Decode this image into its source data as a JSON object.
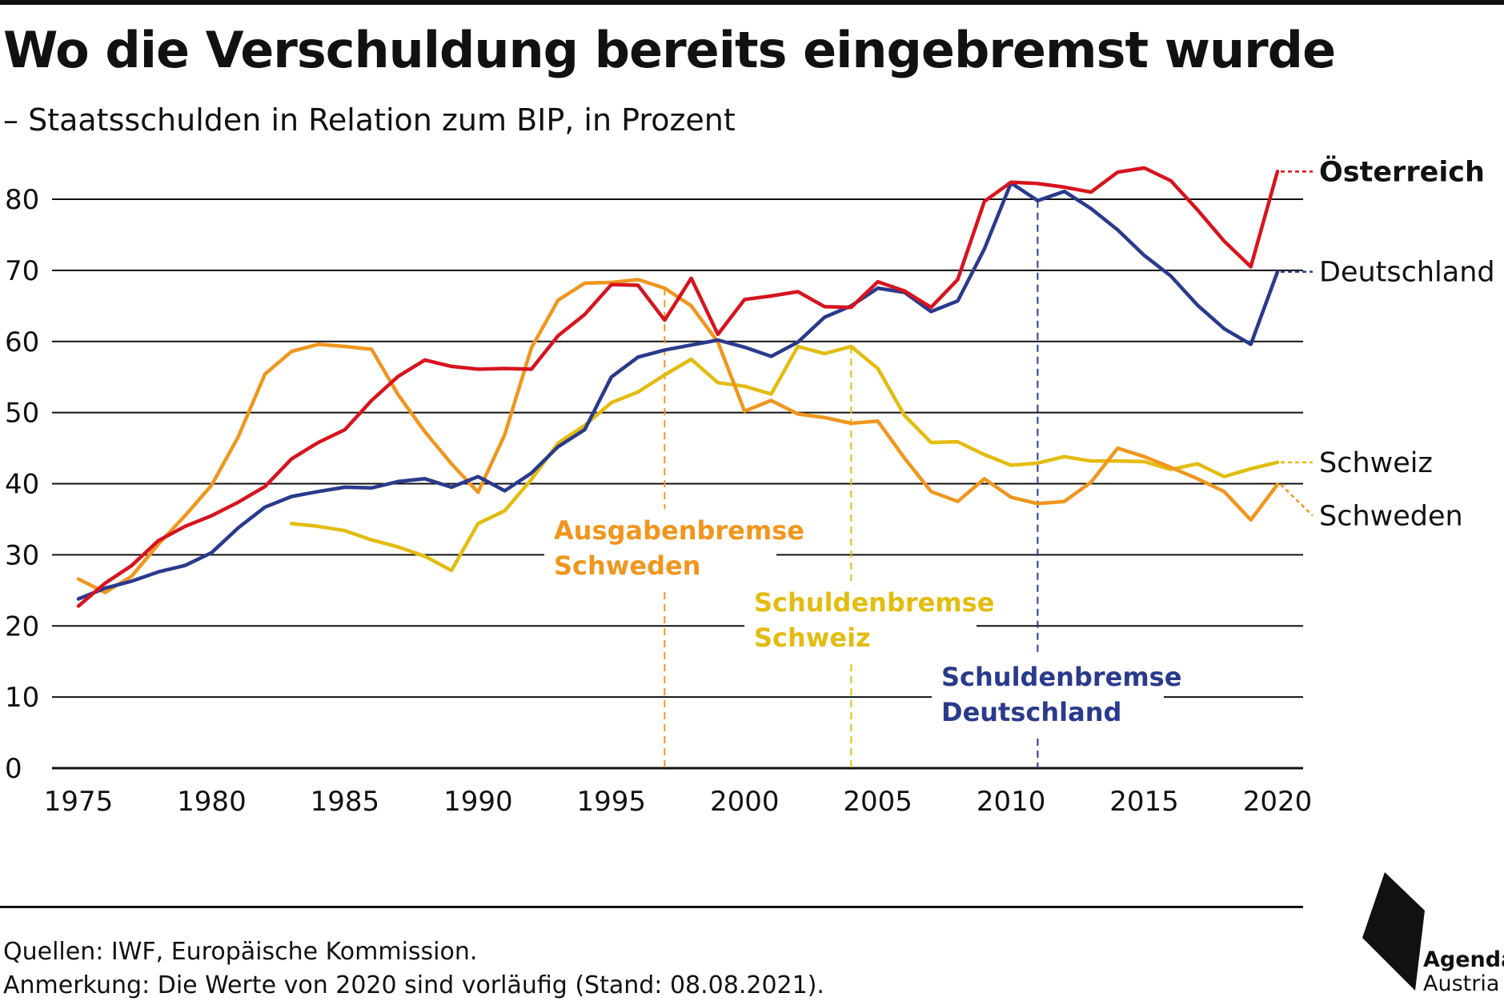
{
  "header": {
    "title": "Wo die Verschuldung bereits eingebremst wurde",
    "subtitle": "– Staatsschulden in Relation zum BIP, in Prozent"
  },
  "footer": {
    "sources": "Quellen: IWF, Europäische Kommission.",
    "note": "Anmerkung: Die Werte von 2020 sind vorläufig (Stand: 08.08.2021)."
  },
  "logo": {
    "line1": "Agenda",
    "line2": "Austria",
    "icon": "agenda-austria-logo-icon"
  },
  "colors": {
    "oesterreich": "#d7141e",
    "deutschland": "#2a3a8c",
    "schweiz": "#e3bc10",
    "schweden": "#f0961e",
    "grid": "#111111"
  },
  "chart_data": {
    "type": "line",
    "xlim": [
      1975,
      2020
    ],
    "ylim": [
      0,
      80
    ],
    "x_ticks": [
      1975,
      1980,
      1985,
      1990,
      1995,
      2000,
      2005,
      2010,
      2015,
      2020
    ],
    "y_ticks": [
      0,
      10,
      20,
      30,
      40,
      50,
      60,
      70,
      80
    ],
    "grid": "horizontal",
    "series": [
      {
        "name": "Österreich",
        "color_key": "oesterreich",
        "x": [
          1975,
          1976,
          1977,
          1978,
          1979,
          1980,
          1981,
          1982,
          1983,
          1984,
          1985,
          1986,
          1987,
          1988,
          1989,
          1990,
          1991,
          1992,
          1993,
          1994,
          1995,
          1996,
          1997,
          1998,
          1999,
          2000,
          2001,
          2002,
          2003,
          2004,
          2005,
          2006,
          2007,
          2008,
          2009,
          2010,
          2011,
          2012,
          2013,
          2014,
          2015,
          2016,
          2017,
          2018,
          2019,
          2020
        ],
        "y": [
          22.8,
          26.0,
          28.5,
          32.0,
          34.0,
          35.5,
          37.4,
          39.6,
          43.5,
          45.8,
          47.6,
          51.7,
          55.1,
          57.4,
          56.5,
          56.1,
          56.2,
          56.1,
          60.8,
          63.8,
          68.0,
          67.9,
          63.0,
          68.9,
          61.0,
          65.9,
          66.4,
          67.0,
          64.9,
          64.8,
          68.4,
          67.1,
          64.8,
          68.7,
          79.7,
          82.4,
          82.2,
          81.7,
          81.0,
          83.8,
          84.4,
          82.6,
          78.5,
          74.1,
          70.5,
          83.9
        ]
      },
      {
        "name": "Deutschland",
        "color_key": "deutschland",
        "x": [
          1975,
          1976,
          1977,
          1978,
          1979,
          1980,
          1981,
          1982,
          1983,
          1984,
          1985,
          1986,
          1987,
          1988,
          1989,
          1990,
          1991,
          1992,
          1993,
          1994,
          1995,
          1996,
          1997,
          1998,
          1999,
          2000,
          2001,
          2002,
          2003,
          2004,
          2005,
          2006,
          2007,
          2008,
          2009,
          2010,
          2011,
          2012,
          2013,
          2014,
          2015,
          2016,
          2017,
          2018,
          2019,
          2020
        ],
        "y": [
          23.8,
          25.3,
          26.3,
          27.6,
          28.5,
          30.3,
          33.8,
          36.7,
          38.2,
          38.9,
          39.5,
          39.4,
          40.3,
          40.7,
          39.5,
          41.0,
          39.0,
          41.5,
          45.2,
          47.6,
          55.0,
          57.8,
          58.8,
          59.5,
          60.2,
          59.2,
          57.9,
          59.9,
          63.4,
          65.0,
          67.5,
          66.9,
          64.2,
          65.7,
          73.0,
          82.3,
          79.8,
          81.1,
          78.7,
          75.7,
          72.1,
          69.2,
          65.1,
          61.8,
          59.6,
          69.8
        ]
      },
      {
        "name": "Schweiz",
        "color_key": "schweiz",
        "x": [
          1983,
          1984,
          1985,
          1986,
          1987,
          1988,
          1989,
          1990,
          1991,
          1992,
          1993,
          1994,
          1995,
          1996,
          1997,
          1998,
          1999,
          2000,
          2001,
          2002,
          2003,
          2004,
          2005,
          2006,
          2007,
          2008,
          2009,
          2010,
          2011,
          2012,
          2013,
          2014,
          2015,
          2016,
          2017,
          2018,
          2019,
          2020
        ],
        "y": [
          34.4,
          34.0,
          33.4,
          32.1,
          31.1,
          29.8,
          27.8,
          34.4,
          36.2,
          40.6,
          45.7,
          48.2,
          51.4,
          52.9,
          55.3,
          57.5,
          54.2,
          53.7,
          52.6,
          59.3,
          58.3,
          59.3,
          56.2,
          49.6,
          45.8,
          45.9,
          44.1,
          42.6,
          42.9,
          43.8,
          43.2,
          43.2,
          43.1,
          42.0,
          42.8,
          41.0,
          42.1,
          43.0
        ]
      },
      {
        "name": "Schweden",
        "color_key": "schweden",
        "x": [
          1975,
          1976,
          1977,
          1978,
          1979,
          1980,
          1981,
          1982,
          1983,
          1984,
          1985,
          1986,
          1987,
          1988,
          1989,
          1990,
          1991,
          1992,
          1993,
          1994,
          1995,
          1996,
          1997,
          1998,
          1999,
          2000,
          2001,
          2002,
          2003,
          2004,
          2005,
          2006,
          2007,
          2008,
          2009,
          2010,
          2011,
          2012,
          2013,
          2014,
          2015,
          2016,
          2017,
          2018,
          2019,
          2020
        ],
        "y": [
          26.6,
          24.7,
          27.0,
          31.5,
          35.5,
          39.8,
          46.6,
          55.4,
          58.6,
          59.6,
          59.3,
          58.9,
          52.5,
          47.3,
          42.8,
          38.8,
          46.9,
          59.1,
          65.8,
          68.2,
          68.3,
          68.7,
          67.5,
          65.0,
          59.9,
          50.2,
          51.7,
          49.8,
          49.3,
          48.5,
          48.8,
          43.6,
          38.9,
          37.5,
          40.7,
          38.1,
          37.2,
          37.5,
          40.2,
          45.0,
          43.8,
          42.3,
          40.7,
          38.9,
          34.9,
          39.9
        ]
      }
    ],
    "end_labels": [
      {
        "series": "Österreich",
        "text": "Österreich",
        "bold": true
      },
      {
        "series": "Deutschland",
        "text": "Deutschland",
        "bold": false
      },
      {
        "series": "Schweiz",
        "text": "Schweiz",
        "bold": false
      },
      {
        "series": "Schweden",
        "text": "Schweden",
        "bold": false
      }
    ],
    "annotations": [
      {
        "year": 1997,
        "color_key": "schweden",
        "lines": [
          "Ausgabenbremse",
          "Schweden"
        ]
      },
      {
        "year": 2004,
        "color_key": "schweiz",
        "lines": [
          "Schuldenbremse",
          "Schweiz"
        ]
      },
      {
        "year": 2011,
        "color_key": "deutschland",
        "lines": [
          "Schuldenbremse",
          "Deutschland"
        ]
      }
    ]
  }
}
